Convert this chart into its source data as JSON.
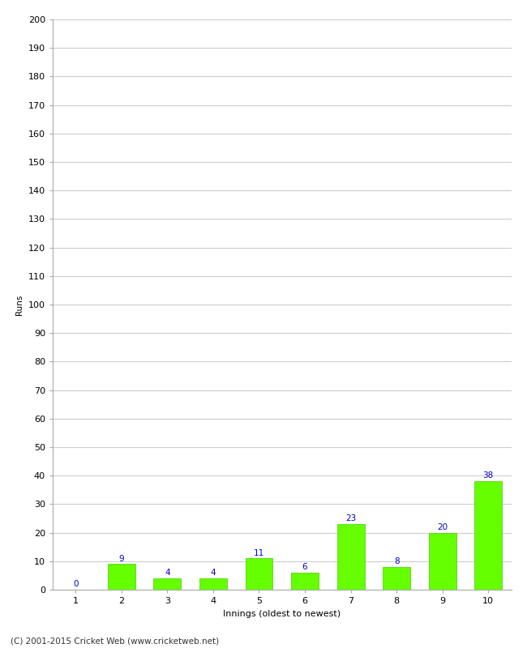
{
  "xlabel": "Innings (oldest to newest)",
  "ylabel": "Runs",
  "categories": [
    1,
    2,
    3,
    4,
    5,
    6,
    7,
    8,
    9,
    10
  ],
  "values": [
    0,
    9,
    4,
    4,
    11,
    6,
    23,
    8,
    20,
    38
  ],
  "bar_color": "#66ff00",
  "bar_edge_color": "#44cc00",
  "label_color": "#0000cc",
  "ylim": [
    0,
    200
  ],
  "yticks": [
    0,
    10,
    20,
    30,
    40,
    50,
    60,
    70,
    80,
    90,
    100,
    110,
    120,
    130,
    140,
    150,
    160,
    170,
    180,
    190,
    200
  ],
  "footer_text": "(C) 2001-2015 Cricket Web (www.cricketweb.net)",
  "background_color": "#ffffff",
  "grid_color": "#cccccc",
  "label_fontsize": 7.5,
  "axis_fontsize": 8,
  "footer_fontsize": 7.5,
  "ylabel_fontsize": 7.5
}
